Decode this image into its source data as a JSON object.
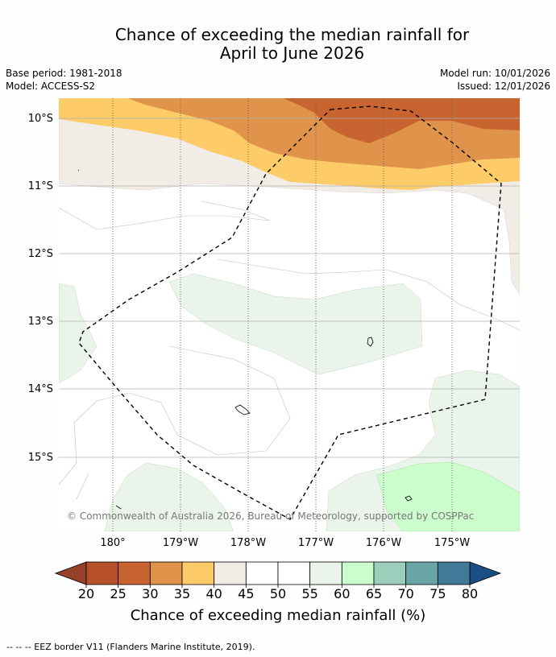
{
  "title_line1": "Chance of exceeding the median rainfall for",
  "title_line2": "April to June 2026",
  "base_period": "Base period: 1981-2018",
  "model": "Model: ACCESS-S2",
  "model_run": "Model run: 10/01/2026",
  "issued": "Issued: 12/01/2026",
  "copyright": "© Commonwealth of Australia 2026, Bureau of Meteorology, supported by COSPPac",
  "lat_labels": [
    "10°S",
    "11°S",
    "12°S",
    "13°S",
    "14°S",
    "15°S"
  ],
  "lon_labels": [
    "180°",
    "179°W",
    "178°W",
    "177°W",
    "176°W",
    "175°W"
  ],
  "colorbar": {
    "title": "Chance of exceeding median rainfall (%)",
    "ticks": [
      "20",
      "25",
      "30",
      "35",
      "40",
      "45",
      "50",
      "55",
      "60",
      "65",
      "70",
      "75",
      "80"
    ],
    "colors": [
      "#b5502b",
      "#c8642f",
      "#e0934a",
      "#fdcb68",
      "#f1ece6",
      "#ffffff",
      "#ffffff",
      "#ebf4ea",
      "#ccfdcc",
      "#9ccfbb",
      "#6aa4a6",
      "#417a98"
    ],
    "under_color": "#97412a",
    "over_color": "#1b4e85"
  },
  "footer": "--  --  -- EEZ border V11 (Flanders Marine Institute, 2019)."
}
